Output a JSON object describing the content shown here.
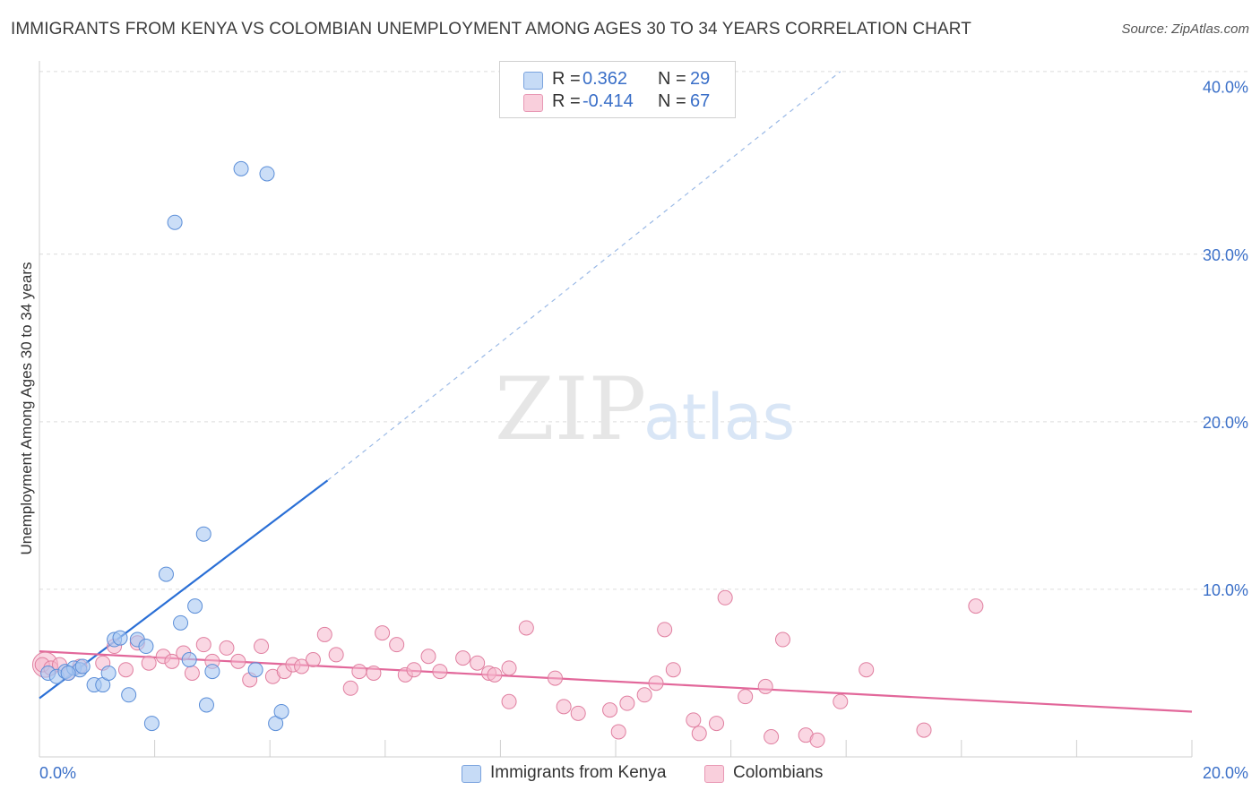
{
  "title": "IMMIGRANTS FROM KENYA VS COLOMBIAN UNEMPLOYMENT AMONG AGES 30 TO 34 YEARS CORRELATION CHART",
  "source": "Source: ZipAtlas.com",
  "watermark": {
    "zip": "ZIP",
    "atlas": "atlas"
  },
  "colors": {
    "kenya_fill": "#a9c8f1",
    "kenya_stroke": "#5b8ed8",
    "kenya_line": "#2a6fd6",
    "colombia_fill": "#f6b6cc",
    "colombia_stroke": "#e07fa0",
    "colombia_line": "#e2679a",
    "axis_label": "#3a6fc8",
    "grid": "#dcdcdc"
  },
  "legend": {
    "kenya": {
      "r_label": "R =",
      "r_value": "0.362",
      "n_label": "N =",
      "n_value": "29"
    },
    "colombia": {
      "r_label": "R =",
      "r_value": "-0.414",
      "n_label": "N =",
      "n_value": "67"
    }
  },
  "bottom_legend": {
    "kenya": "Immigrants from Kenya",
    "colombia": "Colombians"
  },
  "chart_data": {
    "type": "scatter",
    "title": "IMMIGRANTS FROM KENYA VS COLOMBIAN UNEMPLOYMENT AMONG AGES 30 TO 34 YEARS CORRELATION CHART",
    "xlabel": "",
    "ylabel": "Unemployment Among Ages 30 to 34 years",
    "xlim": [
      0,
      20
    ],
    "ylim": [
      0,
      41
    ],
    "x_tick_labels": [
      {
        "value": 0,
        "label": "0.0%"
      },
      {
        "value": 20,
        "label": "20.0%"
      }
    ],
    "y_tick_labels": [
      {
        "value": 10,
        "label": "10.0%"
      },
      {
        "value": 20,
        "label": "20.0%"
      },
      {
        "value": 30,
        "label": "30.0%"
      },
      {
        "value": 40,
        "label": "40.0%"
      }
    ],
    "y_gridlines": [
      10,
      20,
      30,
      40.9
    ],
    "x_minor_ticks": [
      2,
      4,
      6,
      8,
      10,
      12,
      14,
      16,
      18,
      20
    ],
    "series": [
      {
        "name": "Immigrants from Kenya",
        "r": 0.362,
        "n": 29,
        "trend": {
          "x0": 0,
          "y0": 3.5,
          "x1": 5.0,
          "y1": 16.5,
          "dash_x1": 13.9,
          "dash_y1": 40.9
        },
        "points": [
          [
            0.15,
            5.0
          ],
          [
            0.3,
            4.8
          ],
          [
            0.45,
            5.1
          ],
          [
            0.6,
            5.3
          ],
          [
            0.7,
            5.2
          ],
          [
            0.75,
            5.4
          ],
          [
            0.95,
            4.3
          ],
          [
            1.1,
            4.3
          ],
          [
            1.2,
            5.0
          ],
          [
            1.3,
            7.0
          ],
          [
            1.4,
            7.1
          ],
          [
            1.55,
            3.7
          ],
          [
            1.7,
            7.0
          ],
          [
            1.85,
            6.6
          ],
          [
            1.95,
            2.0
          ],
          [
            2.2,
            10.9
          ],
          [
            2.35,
            31.9
          ],
          [
            2.45,
            8.0
          ],
          [
            2.6,
            5.8
          ],
          [
            2.7,
            9.0
          ],
          [
            2.85,
            13.3
          ],
          [
            2.9,
            3.1
          ],
          [
            3.0,
            5.1
          ],
          [
            3.5,
            35.1
          ],
          [
            3.75,
            5.2
          ],
          [
            3.95,
            34.8
          ],
          [
            4.1,
            2.0
          ],
          [
            4.2,
            2.7
          ],
          [
            0.5,
            5.0
          ]
        ]
      },
      {
        "name": "Colombians",
        "r": -0.414,
        "n": 67,
        "trend": {
          "x0": 0,
          "y0": 6.3,
          "x1": 20,
          "y1": 2.7
        },
        "points": [
          [
            0.05,
            5.5
          ],
          [
            0.2,
            5.3
          ],
          [
            0.35,
            5.5
          ],
          [
            0.5,
            5.0
          ],
          [
            0.7,
            5.4
          ],
          [
            1.1,
            5.6
          ],
          [
            1.3,
            6.6
          ],
          [
            1.5,
            5.2
          ],
          [
            1.7,
            6.8
          ],
          [
            1.9,
            5.6
          ],
          [
            2.15,
            6.0
          ],
          [
            2.3,
            5.7
          ],
          [
            2.5,
            6.2
          ],
          [
            2.65,
            5.0
          ],
          [
            2.85,
            6.7
          ],
          [
            3.0,
            5.7
          ],
          [
            3.25,
            6.5
          ],
          [
            3.45,
            5.7
          ],
          [
            3.65,
            4.6
          ],
          [
            3.85,
            6.6
          ],
          [
            4.05,
            4.8
          ],
          [
            4.25,
            5.1
          ],
          [
            4.4,
            5.5
          ],
          [
            4.55,
            5.4
          ],
          [
            4.75,
            5.8
          ],
          [
            4.95,
            7.3
          ],
          [
            5.15,
            6.1
          ],
          [
            5.4,
            4.1
          ],
          [
            5.55,
            5.1
          ],
          [
            5.8,
            5.0
          ],
          [
            5.95,
            7.4
          ],
          [
            6.2,
            6.7
          ],
          [
            6.35,
            4.9
          ],
          [
            6.5,
            5.2
          ],
          [
            6.75,
            6.0
          ],
          [
            6.95,
            5.1
          ],
          [
            7.35,
            5.9
          ],
          [
            7.6,
            5.6
          ],
          [
            7.8,
            5.0
          ],
          [
            7.9,
            4.9
          ],
          [
            8.15,
            3.3
          ],
          [
            8.15,
            5.3
          ],
          [
            8.45,
            7.7
          ],
          [
            8.95,
            4.7
          ],
          [
            9.1,
            3.0
          ],
          [
            9.35,
            2.6
          ],
          [
            9.9,
            2.8
          ],
          [
            10.2,
            3.2
          ],
          [
            10.05,
            1.5
          ],
          [
            10.5,
            3.7
          ],
          [
            10.7,
            4.4
          ],
          [
            10.85,
            7.6
          ],
          [
            11.0,
            5.2
          ],
          [
            11.35,
            2.2
          ],
          [
            11.45,
            1.4
          ],
          [
            11.75,
            2.0
          ],
          [
            11.9,
            9.5
          ],
          [
            12.25,
            3.6
          ],
          [
            12.6,
            4.2
          ],
          [
            12.7,
            1.2
          ],
          [
            12.9,
            7.0
          ],
          [
            13.3,
            1.3
          ],
          [
            13.5,
            1.0
          ],
          [
            13.9,
            3.3
          ],
          [
            14.35,
            5.2
          ],
          [
            15.35,
            1.6
          ],
          [
            16.25,
            9.0
          ]
        ]
      }
    ]
  }
}
